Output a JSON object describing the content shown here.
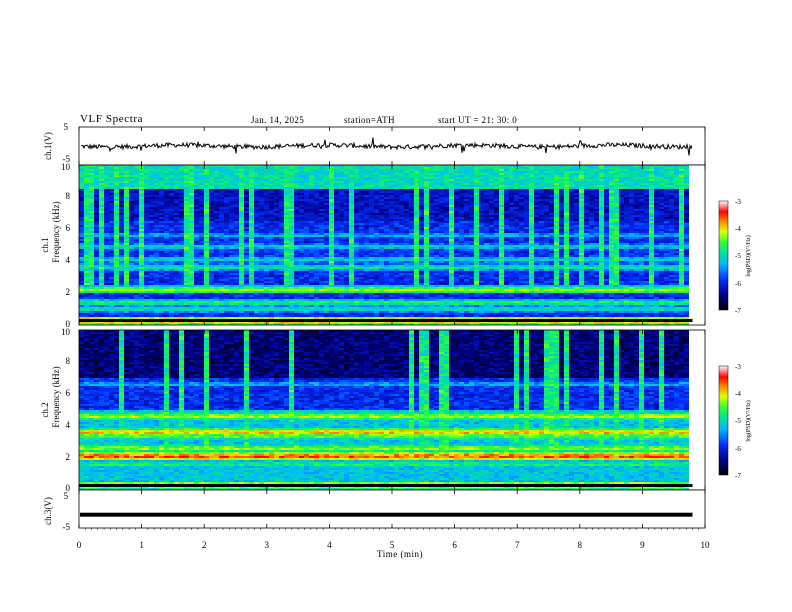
{
  "header": {
    "title": "VLF  Spectra",
    "date": "Jan. 14, 2025",
    "station": "station=ATH",
    "start_ut": "start  UT  =   21: 30: 0"
  },
  "chart_data": [
    {
      "type": "line",
      "ylabel": "ch.1(V)",
      "ylim": [
        -5,
        5
      ],
      "yticks": [
        "5",
        "-5"
      ],
      "xlim": [
        0,
        10
      ],
      "data_end_min": 9.8,
      "description_level": 0
    },
    {
      "type": "heatmap",
      "ylabel_top": "ch.1",
      "ylabel": "Frequency (kHz)",
      "ylim": [
        0,
        10
      ],
      "yticks": [
        "0",
        "2",
        "4",
        "6",
        "8",
        "10"
      ],
      "xlim": [
        0,
        10
      ],
      "data_end_min": 9.8,
      "colorbar": {
        "label": "log(PSD)(V²/Hz)",
        "ticks": [
          "-3",
          "-4",
          "-5",
          "-6",
          "-7"
        ],
        "range": [
          -7,
          -3
        ]
      }
    },
    {
      "type": "heatmap",
      "ylabel_top": "ch.2",
      "ylabel": "Frequency (kHz)",
      "ylim": [
        0,
        10
      ],
      "yticks": [
        "0",
        "2",
        "4",
        "6",
        "8",
        "10"
      ],
      "xlim": [
        0,
        10
      ],
      "data_end_min": 9.8,
      "colorbar": {
        "label": "log(PSD)(V²/Hz)",
        "ticks": [
          "-3",
          "-4",
          "-5",
          "-6",
          "-7"
        ],
        "range": [
          -7,
          -3
        ]
      }
    },
    {
      "type": "line",
      "ylabel": "ch.3(V)",
      "ylim": [
        -5,
        5
      ],
      "yticks": [
        "5",
        "-5"
      ],
      "xlim": [
        0,
        10
      ],
      "data_end_min": 9.8,
      "level": -1.5
    }
  ],
  "xaxis": {
    "label": "Time  (min)",
    "ticks": [
      "0",
      "1",
      "2",
      "3",
      "4",
      "5",
      "6",
      "7",
      "8",
      "9",
      "10"
    ]
  }
}
